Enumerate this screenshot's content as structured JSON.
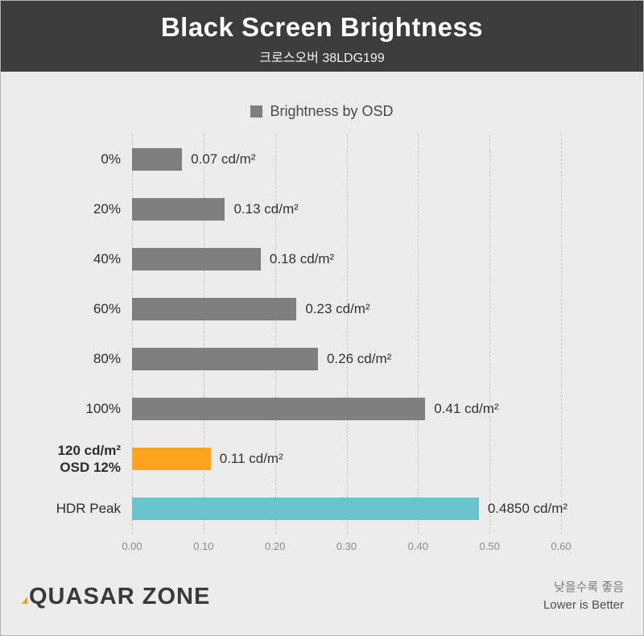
{
  "header": {
    "title": "Black Screen Brightness",
    "subtitle": "크로스오버 38LDG199"
  },
  "legend": {
    "label": "Brightness by OSD",
    "swatch_color": "#7f7f7f"
  },
  "chart_data": {
    "type": "bar",
    "orientation": "horizontal",
    "title": "Black Screen Brightness",
    "subtitle": "크로스오버 38LDG199",
    "legend_entries": [
      "Brightness by OSD"
    ],
    "legend_position": "top-center",
    "categories": [
      "0%",
      "20%",
      "40%",
      "60%",
      "80%",
      "100%",
      "120 cd/m²\nOSD 12%",
      "HDR Peak"
    ],
    "values": [
      0.07,
      0.13,
      0.18,
      0.23,
      0.26,
      0.41,
      0.11,
      0.485
    ],
    "value_labels": [
      "0.07 cd/m²",
      "0.13 cd/m²",
      "0.18 cd/m²",
      "0.23 cd/m²",
      "0.26 cd/m²",
      "0.41 cd/m²",
      "0.11 cd/m²",
      "0.4850 cd/m²"
    ],
    "bar_colors": [
      "#7f7f7f",
      "#7f7f7f",
      "#7f7f7f",
      "#7f7f7f",
      "#7f7f7f",
      "#7f7f7f",
      "#fca41c",
      "#6ac4cb"
    ],
    "xlim": [
      0,
      0.6
    ],
    "x_ticks": [
      "0.00",
      "0.10",
      "0.20",
      "0.30",
      "0.40",
      "0.50",
      "0.60"
    ],
    "grid": "dashed-vertical"
  },
  "footer": {
    "logo": "QUASAR ZONE",
    "note_korean": "낮을수록 좋음",
    "note_english": "Lower is Better"
  }
}
